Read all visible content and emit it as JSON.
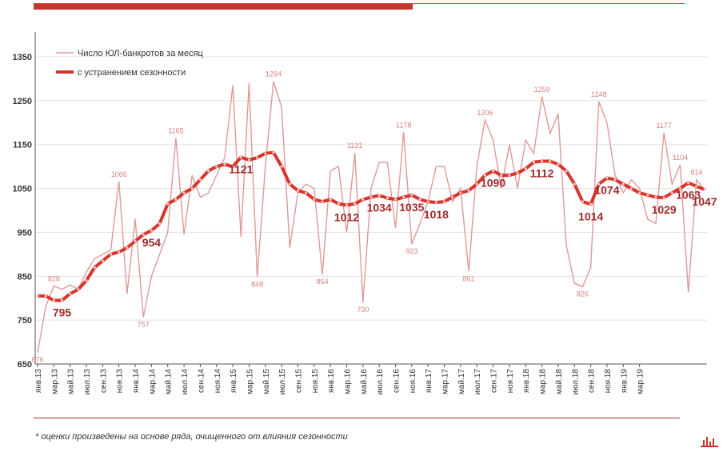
{
  "footnote": "* оценки произведены на основе ряда, очищенного от влияния сезонности",
  "colors": {
    "raw": "#dd9a98",
    "sa": "#d9342b",
    "sa_label": "#9e2a2a",
    "raw_label": "#d9807d",
    "accent": "#c8332c"
  },
  "chart_data": {
    "type": "line",
    "title": "",
    "xlabel": "",
    "ylabel": "",
    "ylim": [
      650,
      1350
    ],
    "yticks": [
      650,
      750,
      850,
      950,
      1050,
      1150,
      1250,
      1350
    ],
    "ytick_labels": [
      "650",
      "750",
      "850",
      "950",
      "1050",
      "1150",
      "1250",
      "1350"
    ],
    "grid": true,
    "legend_position": "top-left",
    "x_tick_labels": [
      "янв.13",
      "мар.13",
      "май.13",
      "июл.13",
      "сен.13",
      "ноя.13",
      "янв.14",
      "мар.14",
      "май.14",
      "июл.14",
      "сен.14",
      "ноя.14",
      "янв.15",
      "мар.15",
      "май.15",
      "июл.15",
      "сен.15",
      "ноя.15",
      "янв.16",
      "мар.16",
      "май.16",
      "июл.16",
      "сен.16",
      "ноя.16",
      "янв.17",
      "мар.17",
      "май.17",
      "июл.17",
      "сен.17",
      "ноя.17",
      "янв.18",
      "мар.18",
      "май.18",
      "июл.18",
      "сен.18",
      "ноя.18",
      "янв.19",
      "мар.19"
    ],
    "series": [
      {
        "name": "Число ЮЛ-банкротов за месяц",
        "style": "thin",
        "values": [
          676,
          780,
          828,
          820,
          830,
          820,
          860,
          890,
          900,
          910,
          1066,
          810,
          980,
          757,
          850,
          900,
          950,
          1165,
          945,
          1080,
          1030,
          1040,
          1080,
          1120,
          1285,
          940,
          1290,
          848,
          1100,
          1294,
          1235,
          915,
          1040,
          1060,
          1050,
          854,
          1090,
          1100,
          950,
          1131,
          790,
          1050,
          1110,
          1110,
          960,
          1178,
          923,
          970,
          1020,
          1100,
          1100,
          1020,
          1050,
          861,
          1100,
          1206,
          1160,
          1050,
          1150,
          1050,
          1160,
          1130,
          1259,
          1175,
          1220,
          920,
          834,
          826,
          870,
          1248,
          1200,
          1080,
          1040,
          1070,
          1050,
          980,
          970,
          1177,
          1060,
          1104,
          814,
          1070,
          1047
        ]
      },
      {
        "name": "с устранением сезонности",
        "style": "thick",
        "values": [
          805,
          805,
          795,
          795,
          810,
          820,
          840,
          870,
          885,
          900,
          905,
          915,
          930,
          945,
          954,
          970,
          1015,
          1025,
          1040,
          1050,
          1070,
          1090,
          1100,
          1105,
          1100,
          1121,
          1115,
          1120,
          1130,
          1132,
          1100,
          1060,
          1045,
          1040,
          1025,
          1020,
          1025,
          1015,
          1012,
          1015,
          1025,
          1030,
          1034,
          1028,
          1025,
          1030,
          1035,
          1025,
          1020,
          1018,
          1020,
          1030,
          1040,
          1045,
          1060,
          1080,
          1090,
          1080,
          1080,
          1085,
          1095,
          1110,
          1112,
          1112,
          1105,
          1090,
          1060,
          1020,
          1014,
          1060,
          1074,
          1070,
          1060,
          1050,
          1040,
          1035,
          1030,
          1029,
          1040,
          1050,
          1063,
          1055,
          1047
        ]
      }
    ],
    "point_labels": [
      {
        "series": 0,
        "index": 0,
        "text": "676"
      },
      {
        "series": 0,
        "index": 2,
        "text": "828"
      },
      {
        "series": 0,
        "index": 10,
        "text": "1066"
      },
      {
        "series": 0,
        "index": 13,
        "text": "757"
      },
      {
        "series": 0,
        "index": 17,
        "text": "1165"
      },
      {
        "series": 0,
        "index": 27,
        "text": "848"
      },
      {
        "series": 0,
        "index": 29,
        "text": "1294"
      },
      {
        "series": 0,
        "index": 35,
        "text": "854"
      },
      {
        "series": 0,
        "index": 39,
        "text": "1131"
      },
      {
        "series": 0,
        "index": 40,
        "text": "790"
      },
      {
        "series": 0,
        "index": 45,
        "text": "1178"
      },
      {
        "series": 0,
        "index": 46,
        "text": "923"
      },
      {
        "series": 0,
        "index": 53,
        "text": "861"
      },
      {
        "series": 0,
        "index": 55,
        "text": "1206"
      },
      {
        "series": 0,
        "index": 62,
        "text": "1259"
      },
      {
        "series": 0,
        "index": 67,
        "text": "826"
      },
      {
        "series": 0,
        "index": 69,
        "text": "1248"
      },
      {
        "series": 0,
        "index": 77,
        "text": "1177"
      },
      {
        "series": 0,
        "index": 79,
        "text": "1104"
      },
      {
        "series": 0,
        "index": 81,
        "text": "814"
      },
      {
        "series": 1,
        "index": 3,
        "text": "795"
      },
      {
        "series": 1,
        "index": 14,
        "text": "954"
      },
      {
        "series": 1,
        "index": 25,
        "text": "1121"
      },
      {
        "series": 1,
        "index": 38,
        "text": "1012"
      },
      {
        "series": 1,
        "index": 42,
        "text": "1034"
      },
      {
        "series": 1,
        "index": 46,
        "text": "1035"
      },
      {
        "series": 1,
        "index": 49,
        "text": "1018"
      },
      {
        "series": 1,
        "index": 56,
        "text": "1090"
      },
      {
        "series": 1,
        "index": 62,
        "text": "1112"
      },
      {
        "series": 1,
        "index": 68,
        "text": "1014"
      },
      {
        "series": 1,
        "index": 70,
        "text": "1074"
      },
      {
        "series": 1,
        "index": 77,
        "text": "1029"
      },
      {
        "series": 1,
        "index": 80,
        "text": "1063"
      },
      {
        "series": 1,
        "index": 82,
        "text": "1047"
      }
    ]
  }
}
